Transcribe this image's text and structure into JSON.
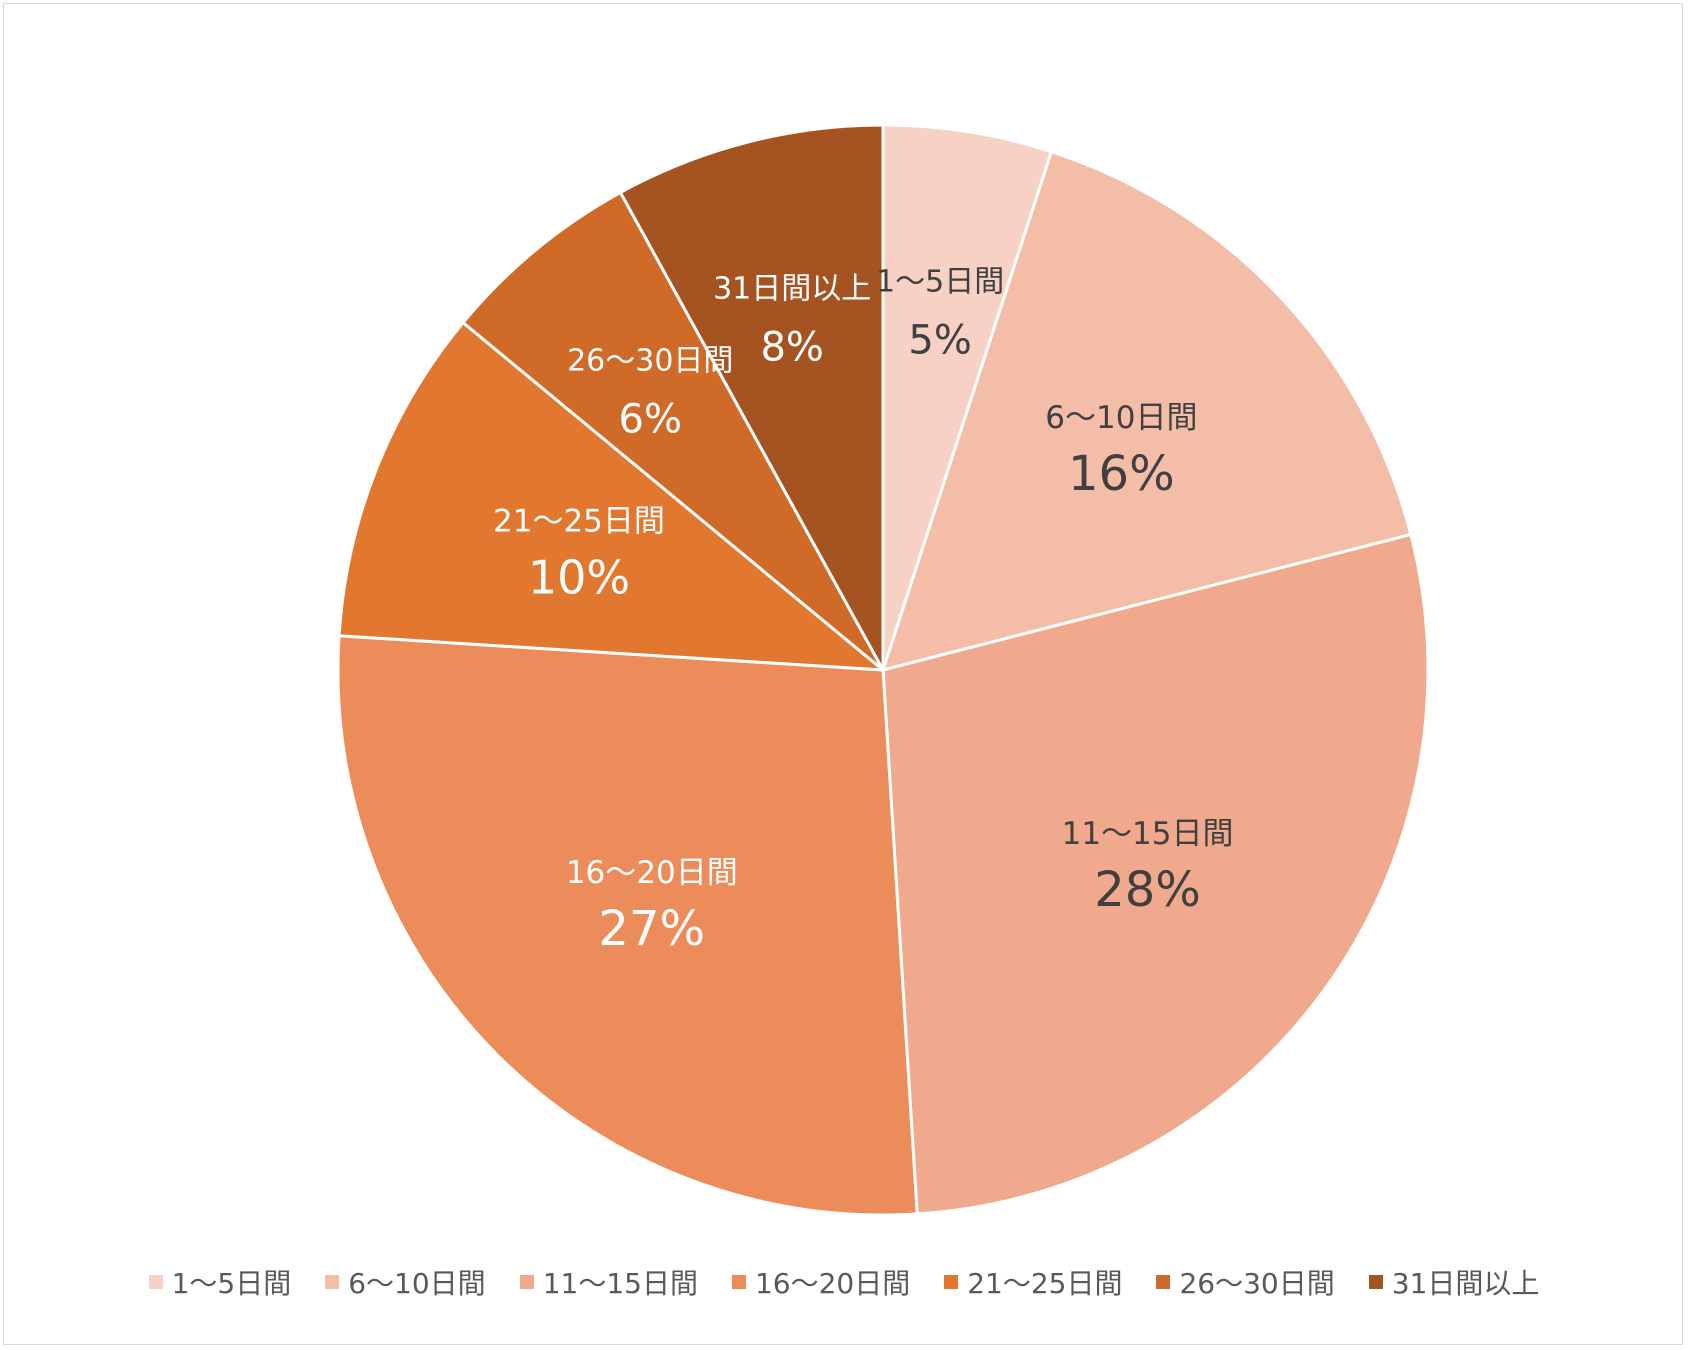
{
  "chart_data": {
    "type": "pie",
    "title": "",
    "start_angle_deg": 0,
    "direction": "clockwise",
    "legend_position": "bottom",
    "slices": [
      {
        "label": "1〜5日間",
        "value": 5,
        "percent_label": "5%",
        "color": "#f6d1c4",
        "label_color": "#404040"
      },
      {
        "label": "6〜10日間",
        "value": 16,
        "percent_label": "16%",
        "color": "#f3bda8",
        "label_color": "#404040"
      },
      {
        "label": "11〜15日間",
        "value": 28,
        "percent_label": "28%",
        "color": "#f0a98c",
        "label_color": "#404040"
      },
      {
        "label": "16〜20日間",
        "value": 27,
        "percent_label": "27%",
        "color": "#ec8c5b",
        "label_color": "#ffffff"
      },
      {
        "label": "21〜25日間",
        "value": 10,
        "percent_label": "10%",
        "color": "#e2772f",
        "label_color": "#ffffff"
      },
      {
        "label": "26〜30日間",
        "value": 6,
        "percent_label": "6%",
        "color": "#d06a28",
        "label_color": "#ffffff"
      },
      {
        "label": "31日間以上",
        "value": 8,
        "percent_label": "8%",
        "color": "#a55321",
        "label_color": "#ffffff"
      }
    ]
  }
}
